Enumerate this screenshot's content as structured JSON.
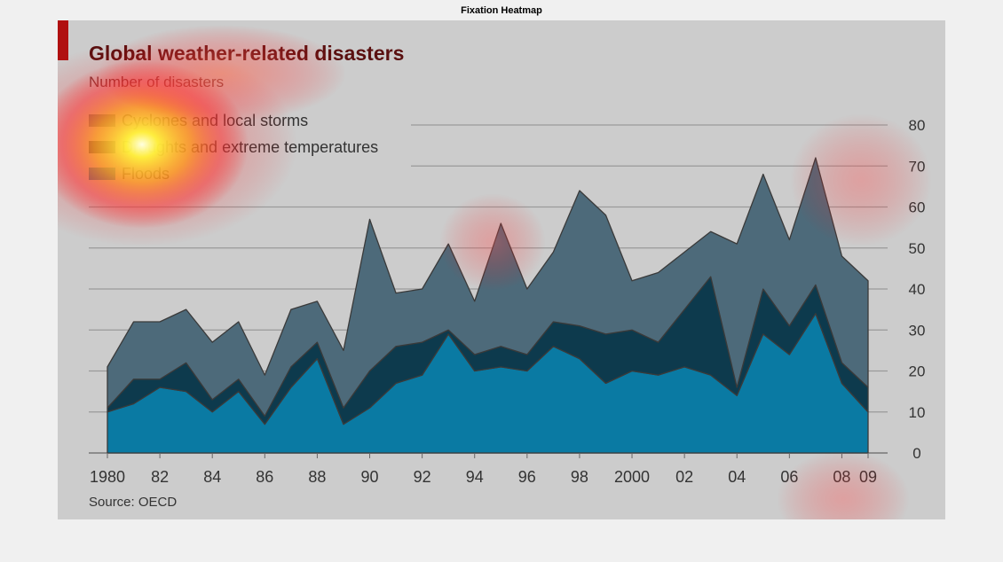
{
  "figure": {
    "title": "Fixation Heatmap"
  },
  "colors": {
    "background": "#cccccc",
    "floods": "#0a7aa3",
    "droughts": "#0d3a4d",
    "cyclones": "#4d6a7a",
    "title": "#5a1010",
    "subtitle": "#6b3a3a",
    "accent": "#b01010"
  },
  "chart_data": {
    "type": "area",
    "stacked": true,
    "title": "Global weather-related disasters",
    "subtitle": "Number of disasters",
    "source": "Source: OECD",
    "x": [
      1980,
      1981,
      1982,
      1983,
      1984,
      1985,
      1986,
      1987,
      1988,
      1989,
      1990,
      1991,
      1992,
      1993,
      1994,
      1995,
      1996,
      1997,
      1998,
      1999,
      2000,
      2001,
      2002,
      2003,
      2004,
      2005,
      2006,
      2007,
      2008,
      2009
    ],
    "x_tick_labels": [
      "1980",
      "82",
      "84",
      "86",
      "88",
      "90",
      "92",
      "94",
      "96",
      "98",
      "2000",
      "02",
      "04",
      "06",
      "08",
      "09"
    ],
    "x_tick_values": [
      1980,
      1982,
      1984,
      1986,
      1988,
      1990,
      1992,
      1994,
      1996,
      1998,
      2000,
      2002,
      2004,
      2006,
      2008,
      2009
    ],
    "ylim": [
      0,
      80
    ],
    "y_ticks": [
      0,
      10,
      20,
      30,
      40,
      50,
      60,
      70,
      80
    ],
    "y_axis_side": "right",
    "grid": true,
    "legend_position": "top-left",
    "series": [
      {
        "name": "Floods",
        "color": "#0a7aa3",
        "values": [
          10,
          12,
          16,
          15,
          10,
          15,
          7,
          16,
          23,
          7,
          11,
          17,
          19,
          29,
          20,
          21,
          20,
          26,
          23,
          17,
          20,
          19,
          21,
          19,
          14,
          29,
          24,
          34,
          17,
          10
        ]
      },
      {
        "name": "Droughts and extreme temperatures",
        "color": "#0d3a4d",
        "values": [
          1,
          6,
          2,
          7,
          3,
          3,
          2,
          5,
          4,
          4,
          9,
          9,
          8,
          1,
          4,
          5,
          4,
          6,
          8,
          12,
          10,
          8,
          14,
          24,
          2,
          11,
          7,
          7,
          5,
          6
        ]
      },
      {
        "name": "Cyclones and local storms",
        "color": "#4d6a7a",
        "values": [
          10,
          14,
          14,
          13,
          14,
          14,
          10,
          14,
          10,
          14,
          37,
          13,
          13,
          21,
          13,
          30,
          16,
          17,
          33,
          29,
          12,
          17,
          14,
          11,
          35,
          28,
          21,
          31,
          26,
          26
        ]
      }
    ],
    "legend_order": [
      "Cyclones and local storms",
      "Droughts and extreme temperatures",
      "Floods"
    ]
  }
}
